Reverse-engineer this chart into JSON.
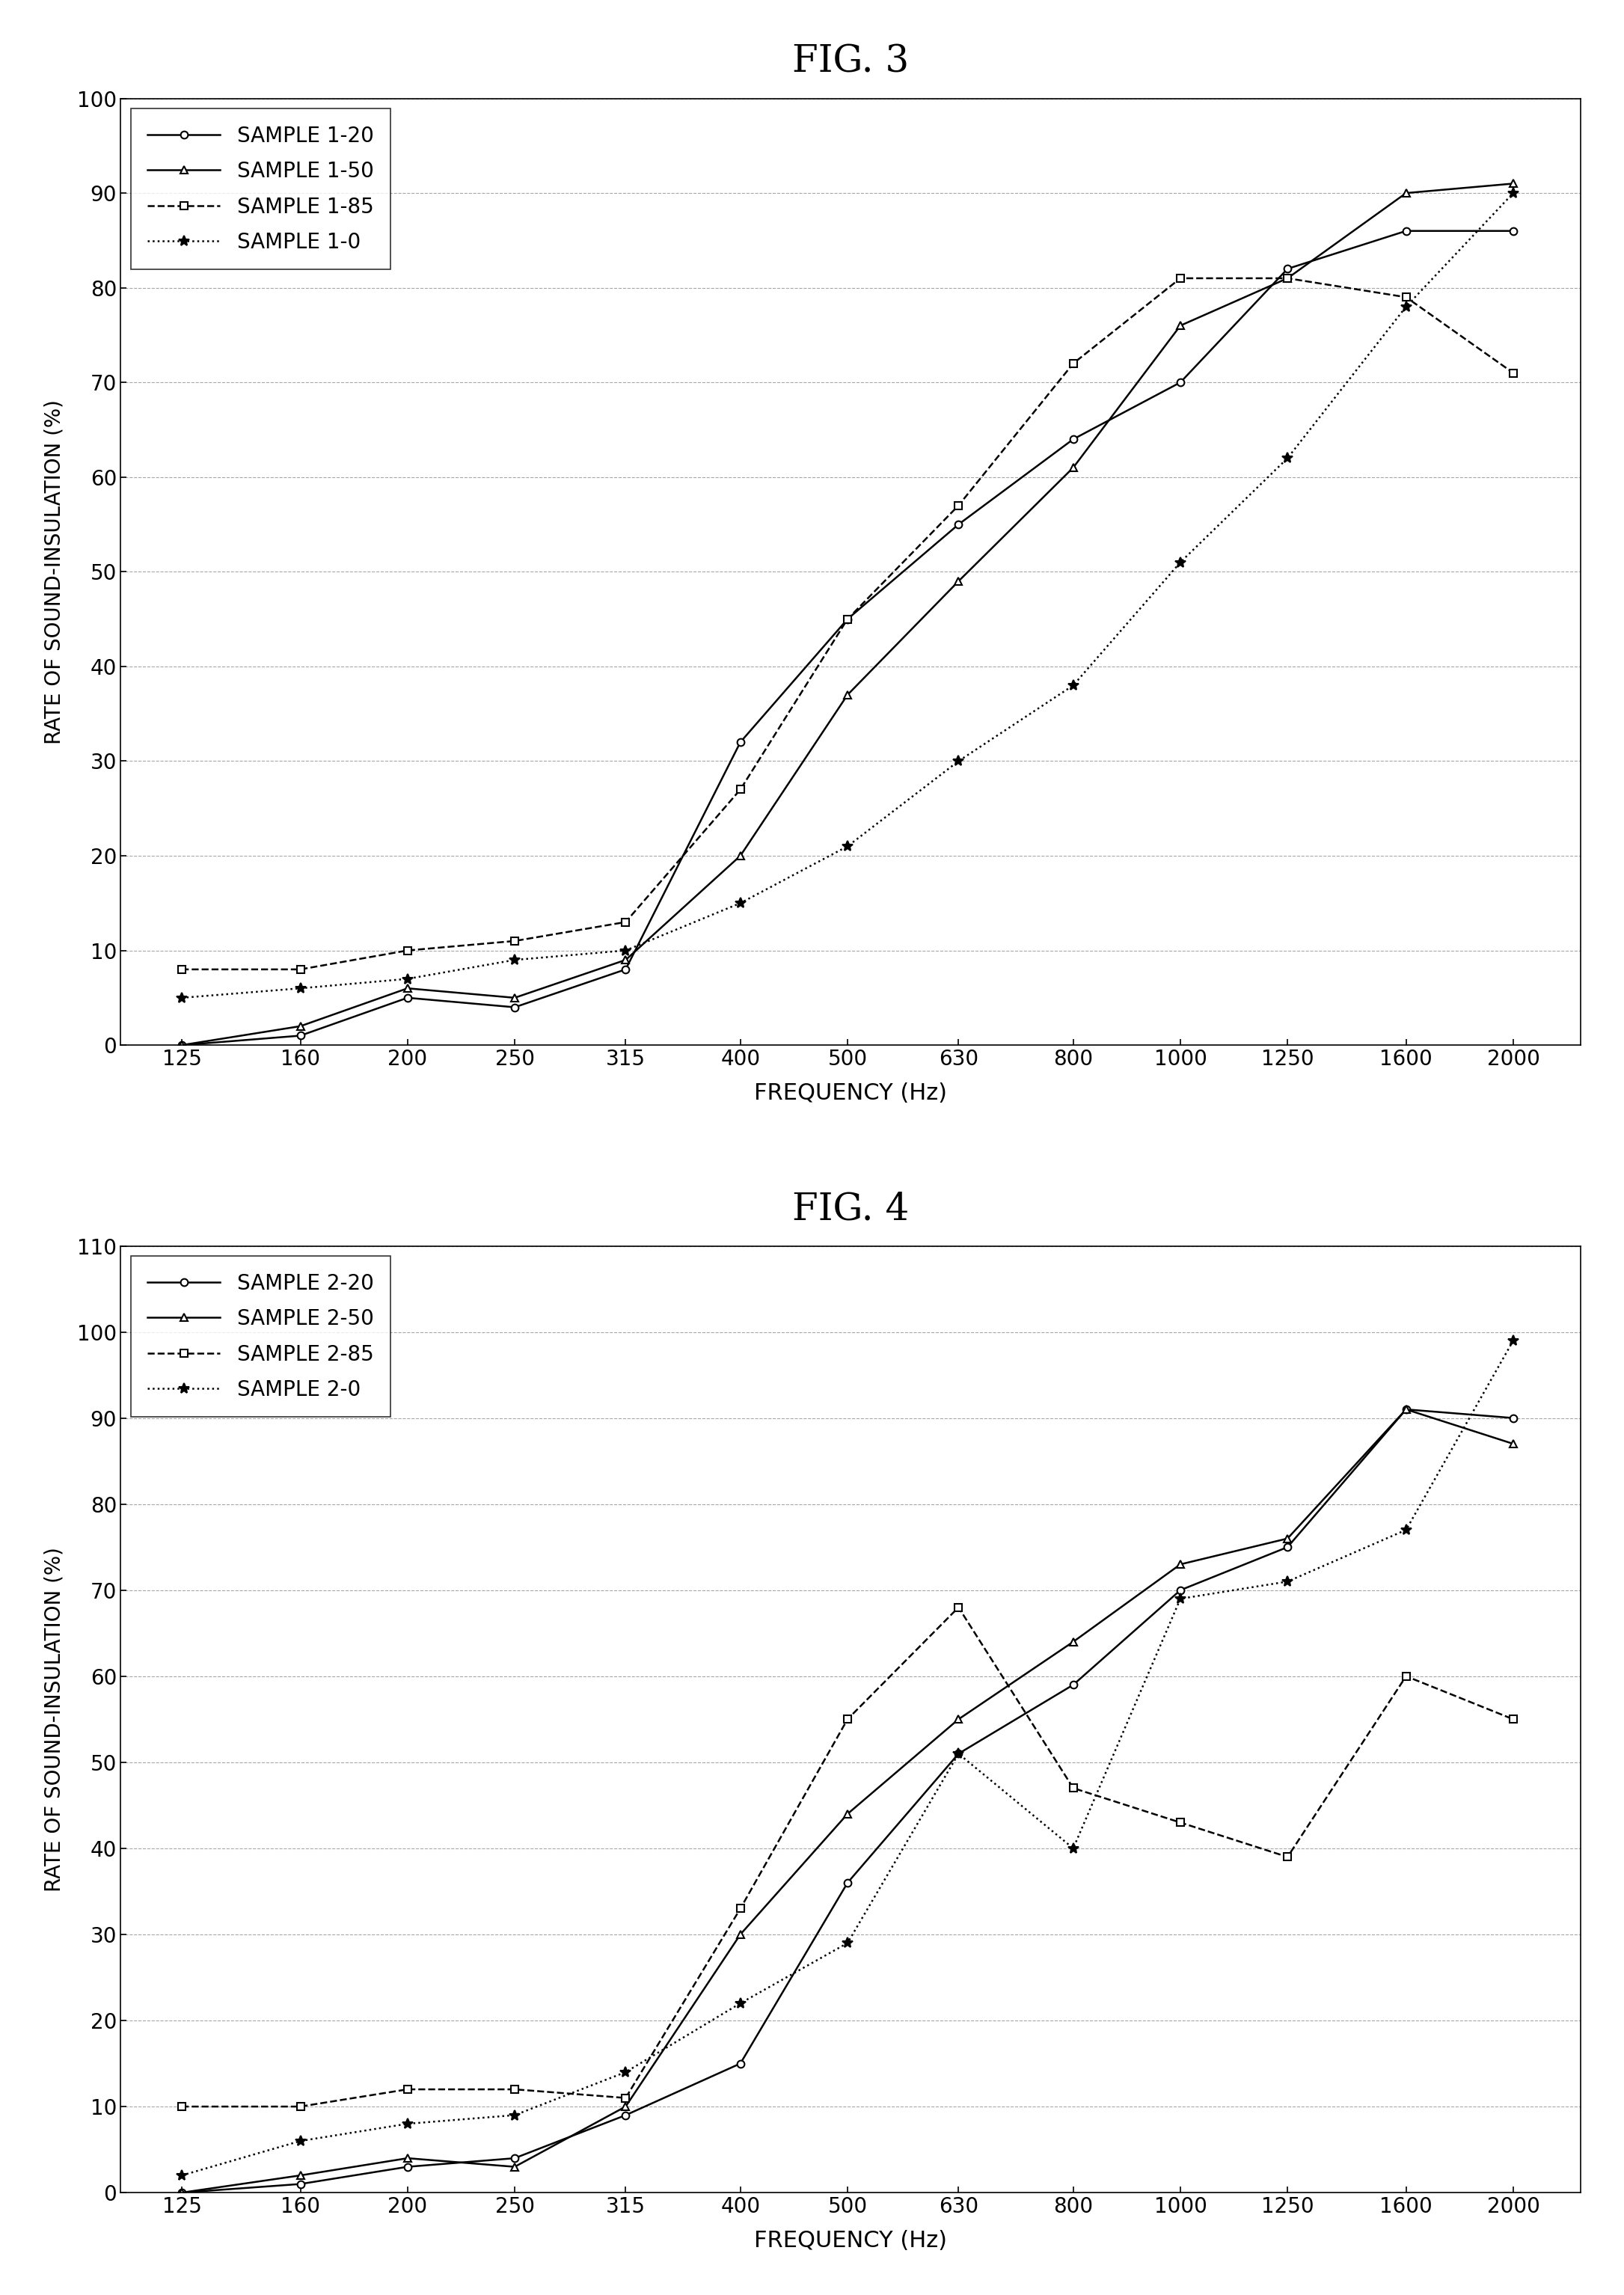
{
  "fig3": {
    "title": "FIG. 3",
    "xlabel": "FREQUENCY (Hz)",
    "ylabel": "RATE OF SOUND-INSULATION (%)",
    "ylim": [
      0,
      100
    ],
    "yticks": [
      0,
      10,
      20,
      30,
      40,
      50,
      60,
      70,
      80,
      90,
      100
    ],
    "xtick_labels": [
      "125",
      "160",
      "200",
      "250",
      "315",
      "400",
      "500",
      "630",
      "800",
      "1000",
      "1250",
      "1600",
      "2000"
    ],
    "xtick_values": [
      125,
      160,
      200,
      250,
      315,
      400,
      500,
      630,
      800,
      1000,
      1250,
      1600,
      2000
    ],
    "series": [
      {
        "label": "SAMPLE 1-20",
        "linestyle": "-",
        "marker": "o",
        "color": "black",
        "markersize": 7,
        "linewidth": 1.8,
        "x": [
          125,
          160,
          200,
          250,
          315,
          400,
          500,
          630,
          800,
          1000,
          1250,
          1600,
          2000
        ],
        "y": [
          0,
          1,
          5,
          4,
          8,
          32,
          45,
          55,
          64,
          70,
          82,
          86,
          86
        ]
      },
      {
        "label": "SAMPLE 1-50",
        "linestyle": "-",
        "marker": "^",
        "color": "black",
        "markersize": 7,
        "linewidth": 1.8,
        "x": [
          125,
          160,
          200,
          250,
          315,
          400,
          500,
          630,
          800,
          1000,
          1250,
          1600,
          2000
        ],
        "y": [
          0,
          2,
          6,
          5,
          9,
          20,
          37,
          49,
          61,
          76,
          81,
          90,
          91
        ]
      },
      {
        "label": "SAMPLE 1-85",
        "linestyle": "--",
        "marker": "s",
        "color": "black",
        "markersize": 7,
        "linewidth": 1.8,
        "x": [
          125,
          160,
          200,
          250,
          315,
          400,
          500,
          630,
          800,
          1000,
          1250,
          1600,
          2000
        ],
        "y": [
          8,
          8,
          10,
          11,
          13,
          27,
          45,
          57,
          72,
          81,
          81,
          79,
          71
        ]
      },
      {
        "label": "SAMPLE 1-0",
        "linestyle": ":",
        "marker": "*",
        "color": "black",
        "markersize": 10,
        "linewidth": 1.8,
        "x": [
          125,
          160,
          200,
          250,
          315,
          400,
          500,
          630,
          800,
          1000,
          1250,
          1600,
          2000
        ],
        "y": [
          5,
          6,
          7,
          9,
          10,
          15,
          21,
          30,
          38,
          51,
          62,
          78,
          90
        ]
      }
    ]
  },
  "fig4": {
    "title": "FIG. 4",
    "xlabel": "FREQUENCY (Hz)",
    "ylabel": "RATE OF SOUND-INSULATION (%)",
    "ylim": [
      0,
      110
    ],
    "yticks": [
      0,
      10,
      20,
      30,
      40,
      50,
      60,
      70,
      80,
      90,
      100,
      110
    ],
    "xtick_labels": [
      "125",
      "160",
      "200",
      "250",
      "315",
      "400",
      "500",
      "630",
      "800",
      "1000",
      "1250",
      "1600",
      "2000"
    ],
    "xtick_values": [
      125,
      160,
      200,
      250,
      315,
      400,
      500,
      630,
      800,
      1000,
      1250,
      1600,
      2000
    ],
    "series": [
      {
        "label": "SAMPLE 2-20",
        "linestyle": "-",
        "marker": "o",
        "color": "black",
        "markersize": 7,
        "linewidth": 1.8,
        "x": [
          125,
          160,
          200,
          250,
          315,
          400,
          500,
          630,
          800,
          1000,
          1250,
          1600,
          2000
        ],
        "y": [
          0,
          1,
          3,
          4,
          9,
          15,
          36,
          51,
          59,
          70,
          75,
          91,
          90
        ]
      },
      {
        "label": "SAMPLE 2-50",
        "linestyle": "-",
        "marker": "^",
        "color": "black",
        "markersize": 7,
        "linewidth": 1.8,
        "x": [
          125,
          160,
          200,
          250,
          315,
          400,
          500,
          630,
          800,
          1000,
          1250,
          1600,
          2000
        ],
        "y": [
          0,
          2,
          4,
          3,
          10,
          30,
          44,
          55,
          64,
          73,
          76,
          91,
          87
        ]
      },
      {
        "label": "SAMPLE 2-85",
        "linestyle": "--",
        "marker": "s",
        "color": "black",
        "markersize": 7,
        "linewidth": 1.8,
        "x": [
          125,
          160,
          200,
          250,
          315,
          400,
          500,
          630,
          800,
          1000,
          1250,
          1600,
          2000
        ],
        "y": [
          10,
          10,
          12,
          12,
          11,
          33,
          55,
          68,
          47,
          43,
          39,
          60,
          55
        ]
      },
      {
        "label": "SAMPLE 2-0",
        "linestyle": ":",
        "marker": "*",
        "color": "black",
        "markersize": 10,
        "linewidth": 1.8,
        "x": [
          125,
          160,
          200,
          250,
          315,
          400,
          500,
          630,
          800,
          1000,
          1250,
          1600,
          2000
        ],
        "y": [
          2,
          6,
          8,
          9,
          14,
          22,
          29,
          51,
          40,
          69,
          71,
          77,
          99
        ]
      }
    ]
  }
}
